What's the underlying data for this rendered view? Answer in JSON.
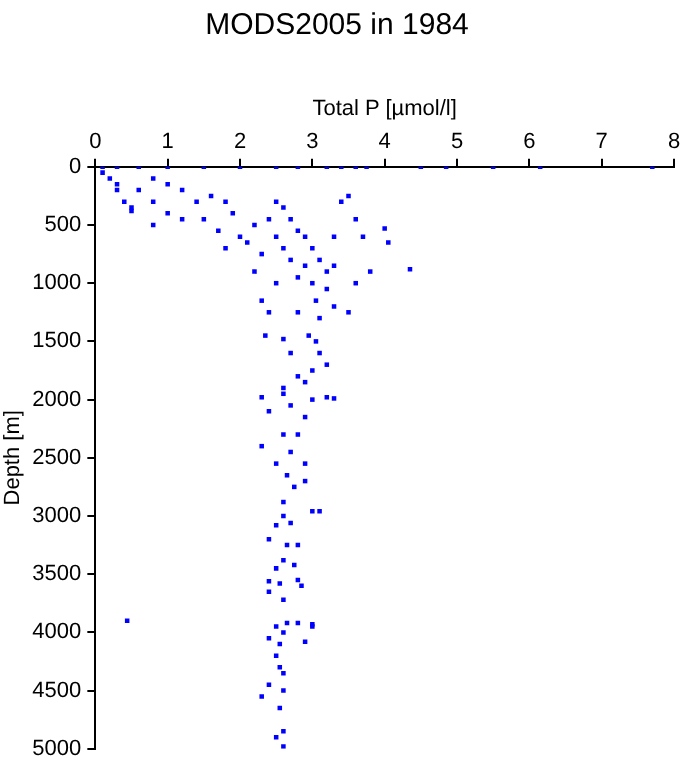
{
  "chart_data": {
    "type": "scatter",
    "title": "MODS2005 in 1984",
    "xlabel": "Total P [µmol/l]",
    "ylabel": "Depth [m]",
    "xlim": [
      0,
      8
    ],
    "xticks": [
      0,
      1,
      2,
      3,
      4,
      5,
      6,
      7,
      8
    ],
    "ylim": [
      5000,
      0
    ],
    "yticks": [
      0,
      500,
      1000,
      1500,
      2000,
      2500,
      3000,
      3500,
      4000,
      4500,
      5000
    ],
    "grid": false,
    "legend": false,
    "marker": "square",
    "series": [
      {
        "color": "#0000ff",
        "x": [
          0.1,
          0.3,
          0.6,
          1.0,
          1.5,
          2.0,
          2.5,
          2.8,
          3.2,
          3.4,
          3.6,
          3.75,
          4.5,
          4.85,
          5.5,
          6.15,
          7.7,
          0.1,
          0.2,
          0.3,
          0.4,
          0.5,
          0.3,
          0.6,
          0.8,
          1.0,
          1.2,
          0.8,
          1.0,
          0.5,
          0.8,
          1.2,
          1.4,
          1.6,
          1.8,
          1.5,
          1.7,
          1.9,
          2.0,
          2.2,
          1.8,
          2.1,
          2.4,
          2.5,
          2.6,
          2.3,
          2.5,
          2.7,
          2.8,
          2.6,
          2.9,
          3.0,
          2.7,
          2.9,
          3.1,
          3.2,
          2.8,
          3.0,
          3.2,
          2.5,
          2.2,
          3.3,
          3.4,
          3.5,
          3.6,
          3.3,
          3.7,
          4.0,
          4.05,
          4.35,
          3.6,
          3.5,
          3.8,
          2.3,
          2.4,
          3.05,
          3.1,
          2.8,
          3.3,
          2.95,
          2.35,
          2.6,
          3.05,
          3.1,
          2.7,
          3.2,
          3.0,
          2.8,
          2.6,
          2.9,
          2.3,
          2.6,
          3.0,
          3.2,
          3.3,
          2.4,
          2.7,
          2.9,
          2.8,
          2.6,
          2.3,
          2.7,
          2.5,
          2.9,
          2.65,
          2.9,
          2.75,
          2.6,
          3.0,
          3.1,
          2.6,
          2.5,
          2.7,
          2.4,
          2.65,
          2.8,
          2.6,
          2.5,
          2.75,
          2.8,
          2.55,
          2.4,
          2.85,
          2.4,
          2.6,
          0.44,
          2.5,
          2.65,
          2.8,
          3.0,
          3.0,
          2.4,
          2.6,
          2.9,
          2.55,
          2.5,
          2.55,
          2.6,
          2.4,
          2.6,
          2.3,
          2.55,
          2.6,
          2.5,
          2.6
        ],
        "values": [
          0,
          0,
          0,
          0,
          0,
          0,
          0,
          0,
          0,
          0,
          0,
          0,
          0,
          0,
          0,
          0,
          0,
          50,
          100,
          200,
          300,
          350,
          150,
          200,
          100,
          150,
          200,
          300,
          400,
          380,
          500,
          450,
          300,
          250,
          300,
          450,
          550,
          400,
          600,
          500,
          700,
          650,
          450,
          300,
          350,
          750,
          600,
          450,
          550,
          700,
          600,
          700,
          800,
          850,
          800,
          900,
          950,
          1000,
          1050,
          1000,
          900,
          850,
          300,
          250,
          450,
          600,
          600,
          530,
          650,
          880,
          1000,
          1250,
          900,
          1150,
          1250,
          1150,
          1300,
          1250,
          1200,
          1450,
          1450,
          1480,
          1500,
          1600,
          1600,
          1700,
          1750,
          1800,
          1900,
          1850,
          1980,
          1950,
          2000,
          1980,
          1990,
          2100,
          2050,
          2150,
          2300,
          2300,
          2400,
          2450,
          2550,
          2550,
          2650,
          2700,
          2750,
          2880,
          2960,
          2960,
          3000,
          3080,
          3060,
          3200,
          3250,
          3250,
          3380,
          3450,
          3420,
          3550,
          3580,
          3560,
          3600,
          3650,
          3720,
          3900,
          3950,
          3920,
          3920,
          3930,
          3950,
          4050,
          4000,
          4080,
          4100,
          4200,
          4300,
          4350,
          4450,
          4500,
          4550,
          4650,
          4850,
          4900,
          4980
        ]
      }
    ]
  }
}
